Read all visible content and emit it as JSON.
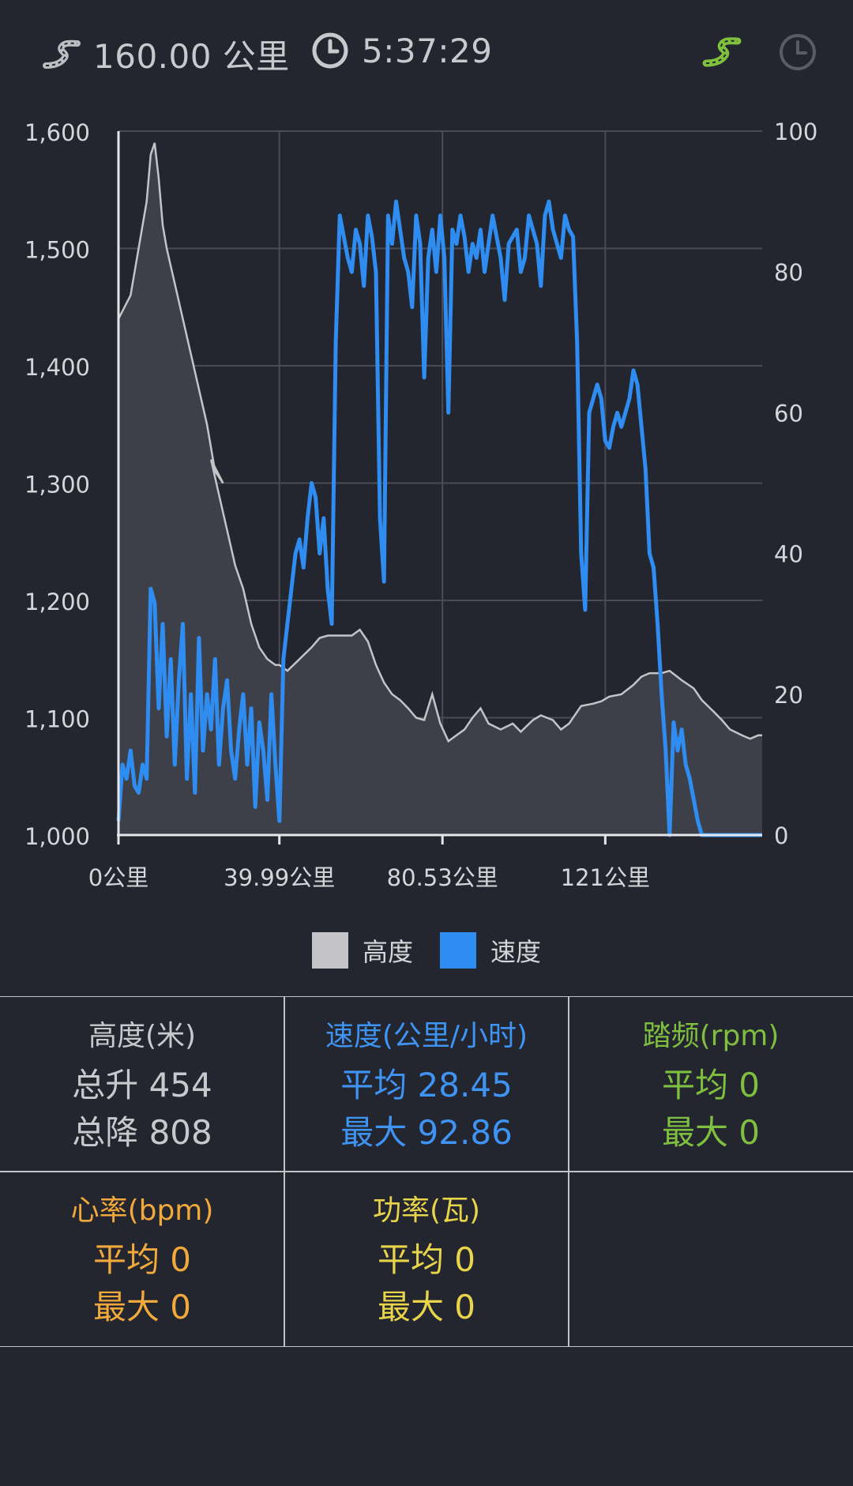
{
  "header": {
    "distance": "160.00 公里",
    "duration": "5:37:29",
    "icons": [
      "route-icon",
      "clock-icon",
      "route-toggle-icon",
      "time-toggle-icon"
    ]
  },
  "chart_data": {
    "type": "line",
    "x_unit": "公里",
    "x_range": [
      0,
      160
    ],
    "x_ticks": [
      "0公里",
      "39.99公里",
      "80.53公里",
      "121公里"
    ],
    "x_tick_values": [
      0,
      39.99,
      80.53,
      121
    ],
    "left_axis": {
      "range": [
        1000,
        1600
      ],
      "ticks": [
        "1,000",
        "1,100",
        "1,200",
        "1,300",
        "1,400",
        "1,500",
        "1,600"
      ]
    },
    "right_axis": {
      "range": [
        0,
        100
      ],
      "ticks": [
        "0",
        "20",
        "40",
        "60",
        "80",
        "100"
      ]
    },
    "grid": true,
    "legend_position": "bottom-center",
    "series": [
      {
        "name": "高度",
        "type": "area",
        "axis": "left",
        "color": "#c4c4c8",
        "x": [
          0,
          3,
          5,
          7,
          8,
          9,
          10,
          11,
          12,
          14,
          16,
          18,
          20,
          22,
          24,
          26,
          23,
          25,
          27,
          29,
          31,
          33,
          35,
          37,
          39,
          40,
          42,
          45,
          48,
          50,
          52,
          55,
          58,
          60,
          62,
          64,
          66,
          68,
          70,
          72,
          74,
          76,
          78,
          80,
          82,
          84,
          86,
          88,
          90,
          92,
          95,
          98,
          100,
          103,
          105,
          108,
          110,
          112,
          115,
          118,
          120,
          122,
          125,
          128,
          130,
          132,
          135,
          137,
          140,
          143,
          145,
          148,
          150,
          152,
          155,
          157,
          159,
          160
        ],
        "y": [
          1440,
          1460,
          1500,
          1540,
          1580,
          1590,
          1560,
          1520,
          1500,
          1470,
          1440,
          1410,
          1380,
          1350,
          1310,
          1300,
          1320,
          1290,
          1260,
          1230,
          1210,
          1180,
          1160,
          1150,
          1145,
          1145,
          1140,
          1150,
          1160,
          1168,
          1170,
          1170,
          1170,
          1175,
          1165,
          1145,
          1130,
          1120,
          1115,
          1108,
          1100,
          1098,
          1120,
          1095,
          1080,
          1085,
          1090,
          1100,
          1108,
          1095,
          1090,
          1095,
          1088,
          1098,
          1102,
          1098,
          1090,
          1095,
          1110,
          1112,
          1114,
          1118,
          1120,
          1128,
          1135,
          1138,
          1138,
          1140,
          1132,
          1125,
          1115,
          1105,
          1098,
          1090,
          1085,
          1082,
          1085,
          1085
        ]
      },
      {
        "name": "速度",
        "type": "line",
        "axis": "right",
        "color": "#2f8cf0",
        "x": [
          0,
          1,
          2,
          3,
          4,
          5,
          6,
          7,
          8,
          9,
          10,
          11,
          12,
          13,
          14,
          15,
          16,
          17,
          18,
          19,
          20,
          21,
          22,
          23,
          24,
          25,
          26,
          27,
          28,
          29,
          30,
          31,
          32,
          33,
          34,
          35,
          36,
          37,
          38,
          39,
          40,
          41,
          42,
          43,
          44,
          45,
          46,
          47,
          48,
          49,
          50,
          51,
          52,
          53,
          54,
          55,
          56,
          57,
          58,
          59,
          60,
          61,
          62,
          63,
          64,
          65,
          66,
          67,
          68,
          69,
          70,
          71,
          72,
          73,
          74,
          75,
          76,
          77,
          78,
          79,
          80,
          81,
          82,
          83,
          84,
          85,
          86,
          87,
          88,
          89,
          90,
          91,
          92,
          93,
          94,
          95,
          96,
          97,
          98,
          99,
          100,
          101,
          102,
          103,
          104,
          105,
          106,
          107,
          108,
          109,
          110,
          111,
          112,
          113,
          114,
          115,
          116,
          117,
          118,
          119,
          120,
          121,
          122,
          123,
          124,
          125,
          126,
          127,
          128,
          129,
          130,
          131,
          132,
          133,
          134,
          135,
          136,
          137,
          138,
          139,
          140,
          141,
          142,
          143,
          144,
          145,
          146,
          147,
          148,
          149,
          150,
          151,
          152,
          153,
          154,
          155,
          156,
          157,
          158,
          159,
          160
        ],
        "y": [
          2,
          10,
          8,
          12,
          7,
          6,
          10,
          8,
          35,
          33,
          18,
          30,
          14,
          25,
          10,
          22,
          30,
          8,
          20,
          6,
          28,
          12,
          20,
          15,
          25,
          10,
          18,
          22,
          12,
          8,
          15,
          20,
          10,
          18,
          4,
          16,
          12,
          5,
          20,
          10,
          2,
          25,
          30,
          35,
          40,
          42,
          38,
          45,
          50,
          48,
          40,
          45,
          35,
          30,
          70,
          88,
          85,
          82,
          80,
          86,
          84,
          78,
          88,
          85,
          80,
          45,
          36,
          88,
          84,
          90,
          86,
          82,
          80,
          75,
          88,
          84,
          65,
          82,
          86,
          80,
          88,
          82,
          60,
          86,
          84,
          88,
          85,
          80,
          84,
          82,
          86,
          80,
          84,
          88,
          85,
          82,
          76,
          84,
          85,
          86,
          80,
          82,
          88,
          86,
          84,
          78,
          88,
          90,
          86,
          84,
          82,
          88,
          86,
          85,
          70,
          40,
          32,
          60,
          62,
          64,
          62,
          56,
          55,
          58,
          60,
          58,
          60,
          62,
          66,
          64,
          58,
          52,
          40,
          38,
          30,
          20,
          12,
          0,
          16,
          12,
          15,
          10,
          8,
          5,
          2,
          0,
          0,
          0,
          0,
          0,
          0,
          0,
          0,
          0,
          0,
          0,
          0,
          0,
          0,
          0,
          0
        ]
      }
    ]
  },
  "legend": [
    {
      "label": "高度",
      "color": "#c4c4c8"
    },
    {
      "label": "速度",
      "color": "#2f8cf0"
    }
  ],
  "stats": {
    "altitude": {
      "title": "高度(米)",
      "line1": "总升 454",
      "line2": "总降 808",
      "color": "#c9c9cd"
    },
    "speed": {
      "title": "速度(公里/小时)",
      "line1": "平均 28.45",
      "line2": "最大 92.86",
      "color": "#3f93f2"
    },
    "cadence": {
      "title": "踏频(rpm)",
      "line1": "平均 0",
      "line2": "最大 0",
      "color": "#7fbf3f"
    },
    "heart": {
      "title": "心率(bpm)",
      "line1": "平均 0",
      "line2": "最大 0",
      "color": "#f2a93b"
    },
    "power": {
      "title": "功率(瓦)",
      "line1": "平均 0",
      "line2": "最大 0",
      "color": "#e8d44a"
    }
  }
}
